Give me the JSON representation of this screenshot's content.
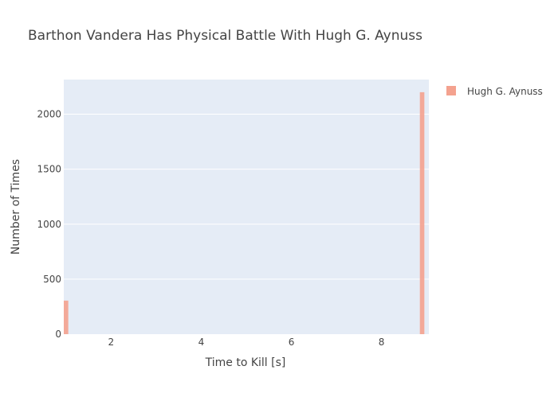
{
  "chart_data": {
    "type": "bar",
    "title": "Barthon Vandera Has Physical Battle With Hugh G. Aynuss",
    "xlabel": "Time to Kill [s]",
    "ylabel": "Number of Times",
    "xlim": [
      0.95,
      9.05
    ],
    "ylim": [
      0,
      2315
    ],
    "x_ticks": [
      2,
      4,
      6,
      8
    ],
    "y_ticks": [
      0,
      500,
      1000,
      1500,
      2000
    ],
    "x_tick_labels": [
      "2",
      "4",
      "6",
      "8"
    ],
    "y_tick_labels": [
      "0",
      "500",
      "1000",
      "1500",
      "2000"
    ],
    "bin_width": 0.1,
    "grid": true,
    "legend_position": "top-right",
    "series": [
      {
        "name": "Hugh G. Aynuss",
        "color": "#F4A28F",
        "bars": [
          {
            "x": 1.0,
            "value": 305
          },
          {
            "x": 8.9,
            "value": 2200
          }
        ]
      }
    ],
    "plot_background": "#E5ECF6",
    "grid_color": "#FFFFFF"
  }
}
